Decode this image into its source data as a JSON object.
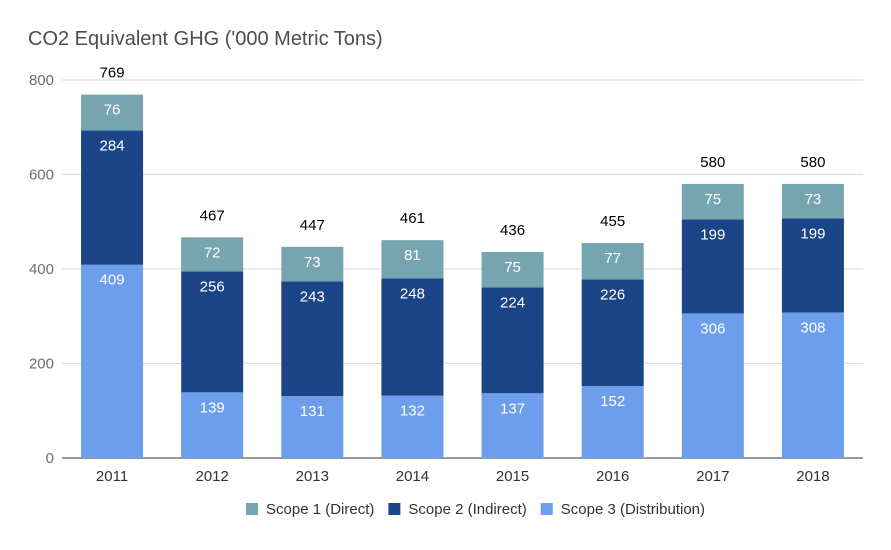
{
  "chart_data": {
    "type": "bar",
    "stacked": true,
    "title": "CO2 Equivalent GHG ('000 Metric Tons)",
    "categories": [
      "2011",
      "2012",
      "2013",
      "2014",
      "2015",
      "2016",
      "2017",
      "2018"
    ],
    "series": [
      {
        "name": "Scope 3 (Distribution)",
        "color": "#6d9eeb",
        "values": [
          409,
          139,
          131,
          132,
          137,
          152,
          306,
          308
        ]
      },
      {
        "name": "Scope 2 (Indirect)",
        "color": "#1c4587",
        "values": [
          284,
          256,
          243,
          248,
          224,
          226,
          199,
          199
        ]
      },
      {
        "name": "Scope 1 (Direct)",
        "color": "#76a5af",
        "values": [
          76,
          72,
          73,
          81,
          75,
          77,
          75,
          73
        ]
      }
    ],
    "totals": [
      769,
      467,
      447,
      461,
      436,
      455,
      580,
      580
    ],
    "yticks": [
      "0",
      "200",
      "400",
      "600",
      "800"
    ],
    "ylim": [
      0,
      800
    ],
    "grid": true,
    "legend_position": "bottom",
    "legend_order": [
      "Scope 1 (Direct)",
      "Scope 2 (Indirect)",
      "Scope 3 (Distribution)"
    ]
  }
}
